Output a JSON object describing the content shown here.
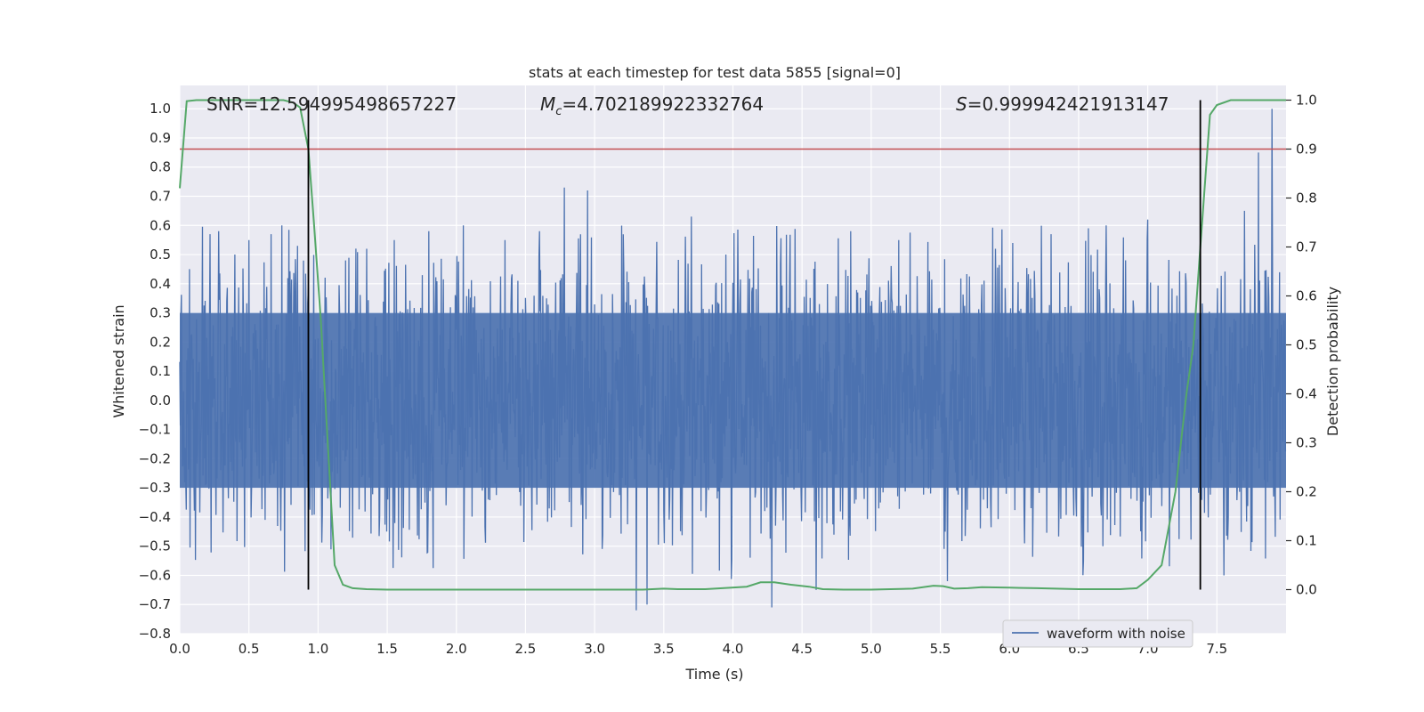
{
  "chart_data": {
    "type": "line",
    "title": "stats at each timestep for test data 5855 [signal=0]",
    "xlabel": "Time (s)",
    "ylabel_left": "Whitened strain",
    "ylabel_right": "Detection probability",
    "xlim": [
      0.0,
      8.0
    ],
    "ylim_left": [
      -0.8,
      1.08
    ],
    "ylim_right": [
      -0.09,
      1.03
    ],
    "x_ticks": [
      "0.0",
      "0.5",
      "1.0",
      "1.5",
      "2.0",
      "2.5",
      "3.0",
      "3.5",
      "4.0",
      "4.5",
      "5.0",
      "5.5",
      "6.0",
      "6.5",
      "7.0",
      "7.5"
    ],
    "x_tick_values": [
      0,
      0.5,
      1,
      1.5,
      2,
      2.5,
      3,
      3.5,
      4,
      4.5,
      5,
      5.5,
      6,
      6.5,
      7,
      7.5
    ],
    "y_left_ticks": [
      "1.0",
      "0.9",
      "0.8",
      "0.7",
      "0.6",
      "0.5",
      "0.4",
      "0.3",
      "0.2",
      "0.1",
      "0.0",
      "−0.1",
      "−0.2",
      "−0.3",
      "−0.4",
      "−0.5",
      "−0.6",
      "−0.7",
      "−0.8"
    ],
    "y_left_tick_values": [
      1.0,
      0.9,
      0.8,
      0.7,
      0.6,
      0.5,
      0.4,
      0.3,
      0.2,
      0.1,
      0.0,
      -0.1,
      -0.2,
      -0.3,
      -0.4,
      -0.5,
      -0.6,
      -0.7,
      -0.8
    ],
    "y_right_ticks": [
      "1.0",
      "0.9",
      "0.8",
      "0.7",
      "0.6",
      "0.5",
      "0.4",
      "0.3",
      "0.2",
      "0.1",
      "0.0"
    ],
    "y_right_tick_values": [
      1.0,
      0.9,
      0.8,
      0.7,
      0.6,
      0.5,
      0.4,
      0.3,
      0.2,
      0.1,
      0.0
    ],
    "annotations": {
      "snr": "SNR=12.594995498657227",
      "mc_symbol": "M",
      "mc_subscript": "c",
      "mc_value": "=4.702189922332764",
      "s_symbol": "S",
      "s_value": "=0.999942421913147"
    },
    "legend": [
      "waveform with noise"
    ],
    "threshold": 0.9,
    "vertical_lines_x": [
      0.93,
      7.38
    ],
    "waveform_series": {
      "name": "waveform with noise",
      "color": "#4c72b0",
      "sample_rate_hz": 256,
      "core_amplitude": 0.3,
      "spike_times": [
        0.07,
        0.22,
        0.28,
        0.4,
        0.5,
        0.66,
        0.74,
        0.85,
        1.2,
        1.35,
        1.55,
        1.8,
        2.05,
        2.35,
        2.6,
        2.78,
        2.95,
        3.3,
        3.38,
        3.7,
        3.95,
        4.28,
        4.6,
        4.85,
        5.2,
        5.55,
        5.9,
        6.3,
        6.7,
        7.0,
        7.55,
        7.7,
        7.8,
        7.9
      ],
      "spike_values": [
        0.45,
        0.57,
        0.58,
        0.5,
        0.55,
        0.57,
        0.6,
        0.53,
        0.48,
        0.52,
        0.55,
        0.58,
        0.6,
        0.55,
        0.58,
        0.73,
        0.72,
        -0.72,
        -0.7,
        0.63,
        0.5,
        -0.71,
        -0.65,
        0.58,
        0.55,
        -0.62,
        0.52,
        0.57,
        0.6,
        0.62,
        -0.6,
        0.65,
        0.85,
        1.0
      ]
    },
    "probability_series": {
      "name": "detection probability",
      "color": "#55a868",
      "x": [
        0.0,
        0.05,
        0.12,
        0.2,
        0.4,
        0.6,
        0.75,
        0.82,
        0.87,
        0.93,
        0.97,
        1.02,
        1.12,
        1.18,
        1.25,
        1.35,
        1.5,
        2.0,
        3.0,
        3.35,
        3.5,
        3.6,
        3.8,
        4.1,
        4.2,
        4.3,
        4.42,
        4.55,
        4.65,
        4.8,
        5.0,
        5.3,
        5.45,
        5.52,
        5.6,
        5.7,
        5.8,
        6.0,
        6.2,
        6.5,
        6.8,
        6.92,
        7.0,
        7.1,
        7.2,
        7.28,
        7.33,
        7.38,
        7.45,
        7.5,
        7.6,
        7.8,
        8.0
      ],
      "y": [
        0.82,
        0.998,
        1.0,
        1.0,
        1.0,
        1.0,
        1.0,
        0.995,
        0.985,
        0.9,
        0.75,
        0.55,
        0.05,
        0.01,
        0.003,
        0.001,
        0.0,
        0.0,
        0.0,
        0.0,
        0.002,
        0.001,
        0.001,
        0.006,
        0.015,
        0.015,
        0.01,
        0.006,
        0.001,
        0.0,
        0.0,
        0.002,
        0.008,
        0.007,
        0.002,
        0.003,
        0.005,
        0.004,
        0.003,
        0.001,
        0.001,
        0.003,
        0.02,
        0.05,
        0.2,
        0.4,
        0.5,
        0.7,
        0.97,
        0.99,
        1.0,
        1.0,
        1.0
      ]
    }
  }
}
